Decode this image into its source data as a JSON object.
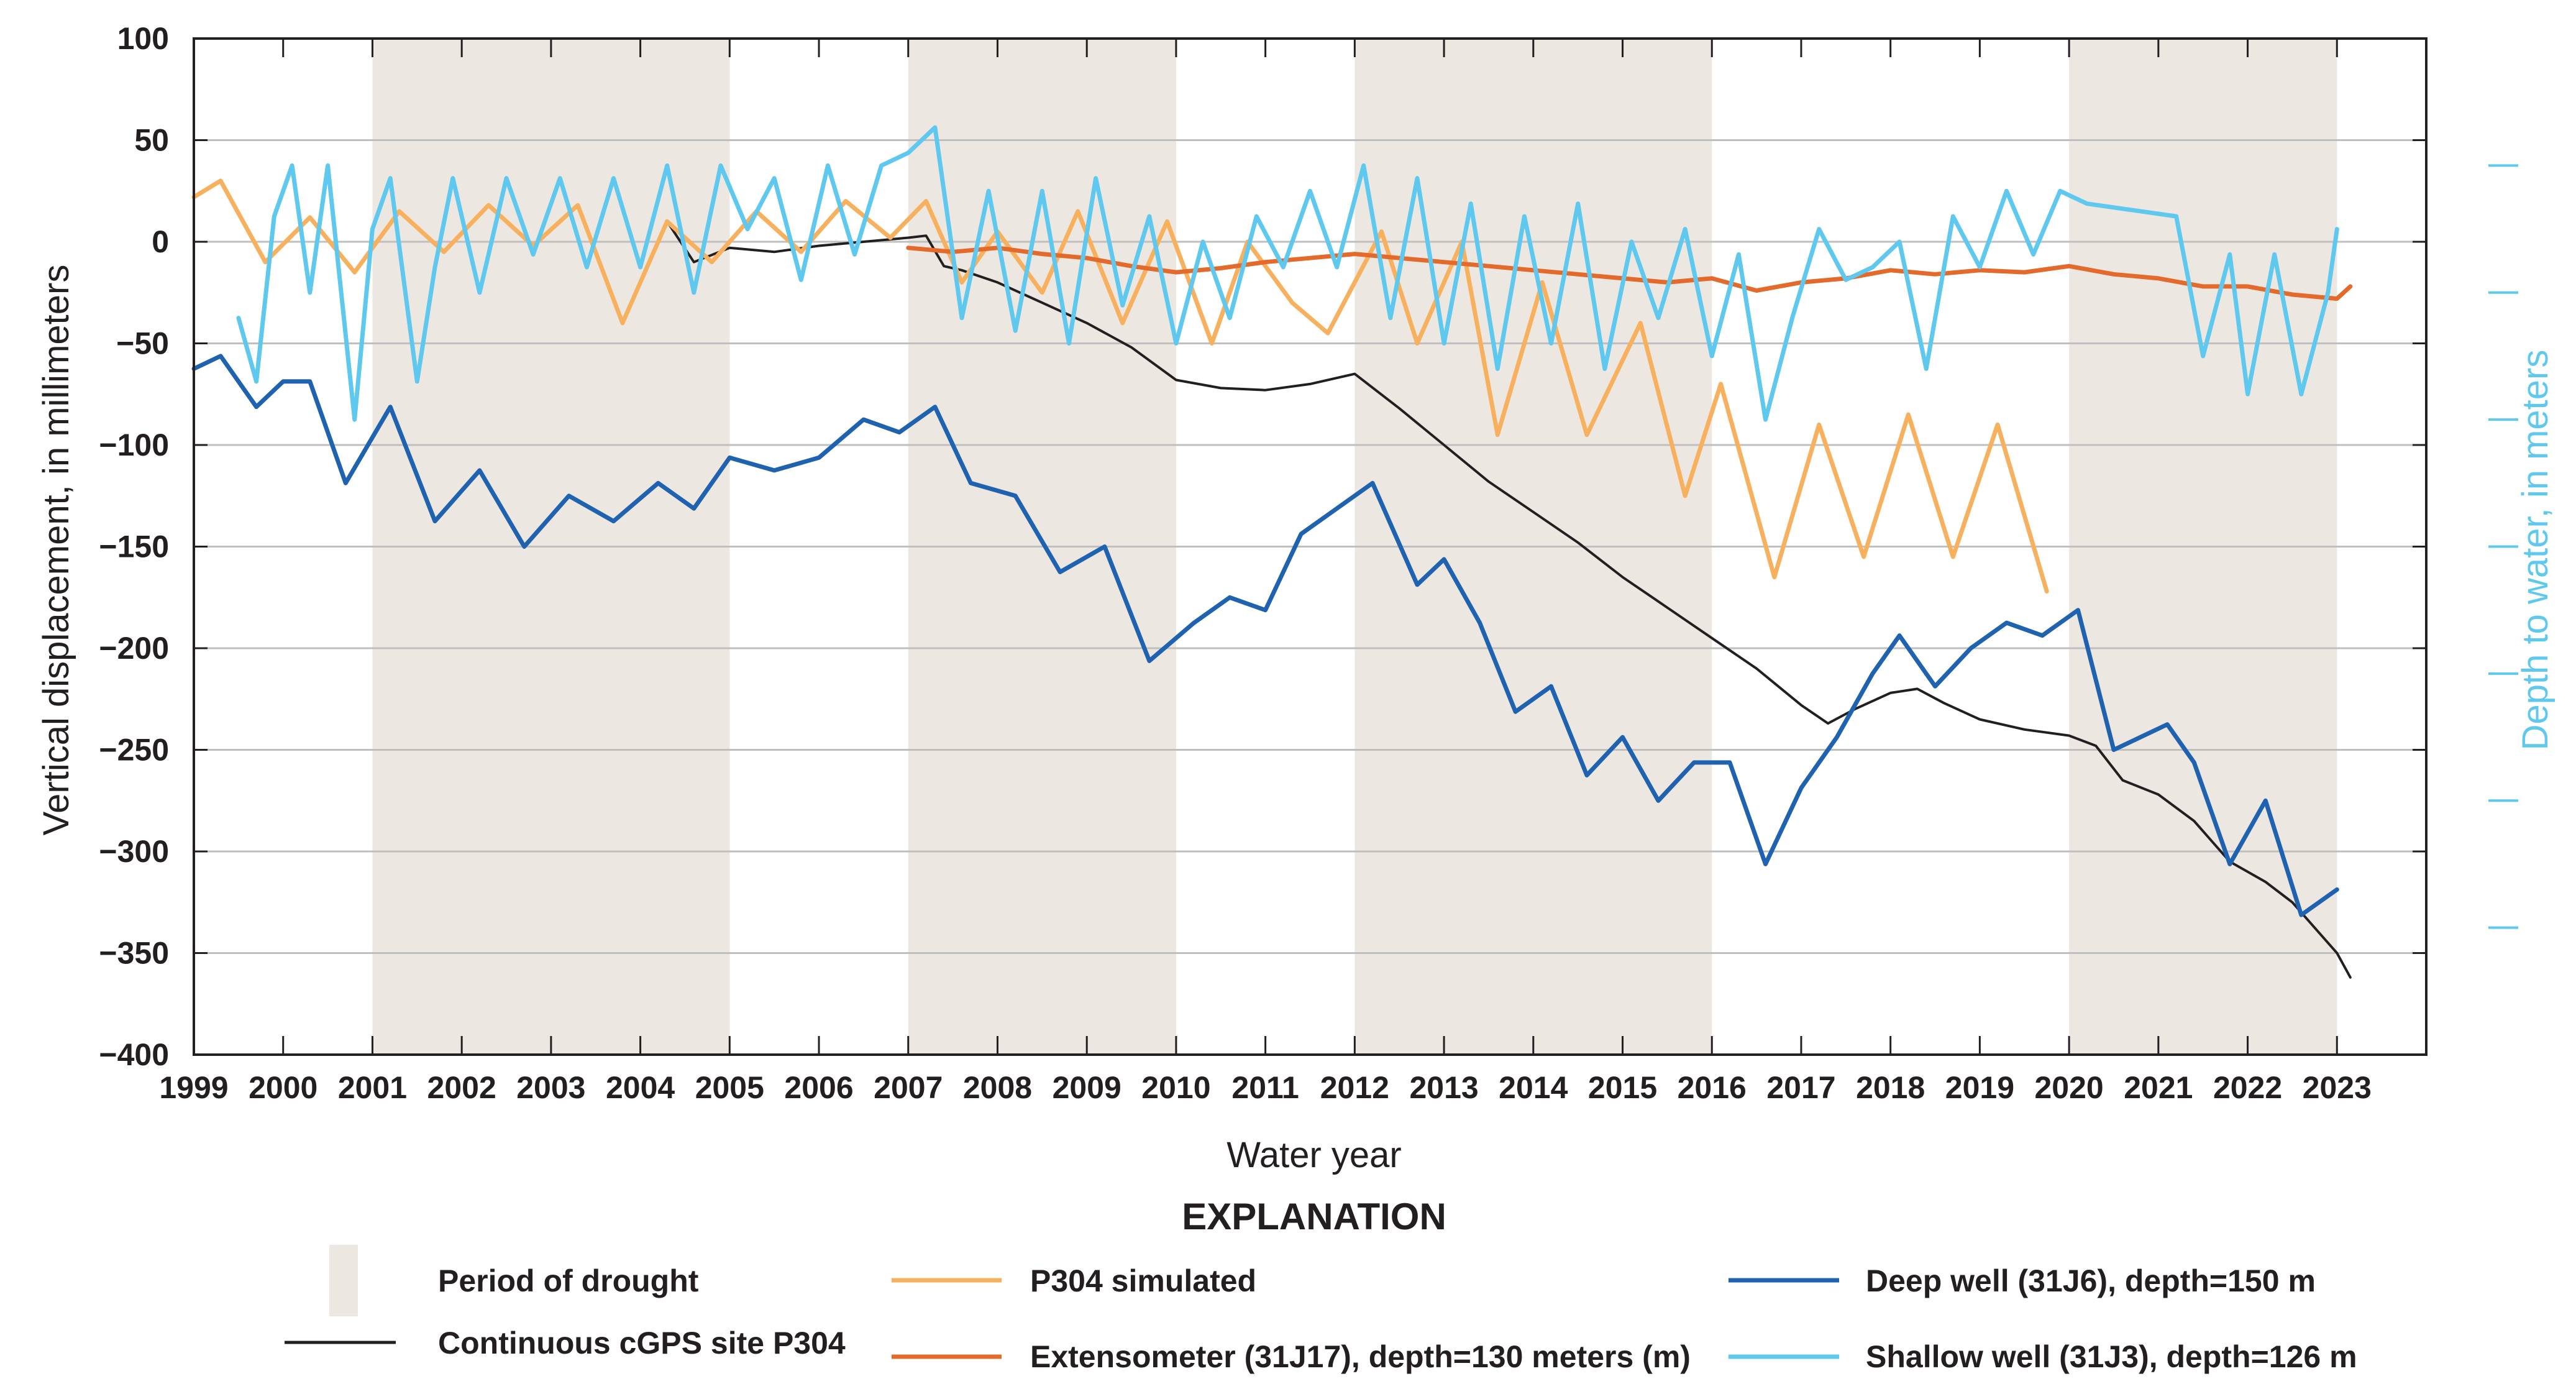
{
  "chart_data": {
    "type": "line",
    "xlabel": "Water year",
    "ylabel": "Vertical displacement, in millimeters",
    "y2label": "Depth to water, in meters",
    "xlim": [
      1999,
      2024
    ],
    "ylim": [
      -400,
      100
    ],
    "y2lim": [
      80,
      0
    ],
    "x_ticks": [
      1999,
      2000,
      2001,
      2002,
      2003,
      2004,
      2005,
      2006,
      2007,
      2008,
      2009,
      2010,
      2011,
      2012,
      2013,
      2014,
      2015,
      2016,
      2017,
      2018,
      2019,
      2020,
      2021,
      2022,
      2023
    ],
    "y_ticks": [
      100,
      50,
      0,
      -50,
      -100,
      -150,
      -200,
      -250,
      -300,
      -350,
      -400
    ],
    "y_tick_labels": [
      "100",
      "50",
      "0",
      "−50",
      "−100",
      "−150",
      "−200",
      "−250",
      "−300",
      "−350",
      "−400"
    ],
    "y2_ticks": [
      0,
      10,
      20,
      30,
      40,
      50,
      60,
      70,
      80
    ],
    "drought_periods": [
      [
        2001,
        2005
      ],
      [
        2007,
        2010
      ],
      [
        2012,
        2016
      ],
      [
        2020,
        2023
      ]
    ],
    "series": [
      {
        "name": "Continuous cGPS site P304",
        "color": "#231f20",
        "axis": "left",
        "x": [
          2004.3,
          2004.6,
          2005.0,
          2005.5,
          2006.0,
          2006.5,
          2007.0,
          2007.2,
          2007.4,
          2007.6,
          2008.0,
          2008.5,
          2009.0,
          2009.5,
          2010.0,
          2010.5,
          2011.0,
          2011.5,
          2012.0,
          2012.5,
          2013.0,
          2013.5,
          2014.0,
          2014.5,
          2015.0,
          2015.5,
          2016.0,
          2016.5,
          2017.0,
          2017.3,
          2017.6,
          2018.0,
          2018.3,
          2018.6,
          2019.0,
          2019.5,
          2020.0,
          2020.3,
          2020.6,
          2021.0,
          2021.4,
          2021.8,
          2022.2,
          2022.5,
          2022.8,
          2023.0,
          2023.15
        ],
        "y": [
          10,
          -10,
          -3,
          -5,
          -2,
          0,
          2,
          3,
          -12,
          -14,
          -20,
          -30,
          -40,
          -52,
          -68,
          -72,
          -73,
          -70,
          -65,
          -82,
          -100,
          -118,
          -133,
          -148,
          -165,
          -180,
          -195,
          -210,
          -228,
          -237,
          -230,
          -222,
          -220,
          -227,
          -235,
          -240,
          -243,
          -248,
          -265,
          -272,
          -285,
          -305,
          -315,
          -325,
          -340,
          -350,
          -362
        ]
      },
      {
        "name": "P304 simulated",
        "color": "#f7b15e",
        "axis": "left",
        "x": [
          1999.0,
          1999.3,
          1999.8,
          2000.3,
          2000.8,
          2001.3,
          2001.8,
          2002.3,
          2002.8,
          2003.3,
          2003.8,
          2004.3,
          2004.8,
          2005.3,
          2005.8,
          2006.3,
          2006.8,
          2007.2,
          2007.6,
          2008.0,
          2008.5,
          2008.9,
          2009.4,
          2009.9,
          2010.4,
          2010.8,
          2011.3,
          2011.7,
          2012.3,
          2012.7,
          2013.2,
          2013.6,
          2014.1,
          2014.6,
          2015.2,
          2015.7,
          2016.1,
          2016.7,
          2017.2,
          2017.7,
          2018.2,
          2018.7,
          2019.2,
          2019.75
        ],
        "y": [
          22,
          30,
          -10,
          12,
          -15,
          15,
          -5,
          18,
          -2,
          18,
          -40,
          10,
          -10,
          15,
          -5,
          20,
          2,
          20,
          -20,
          5,
          -25,
          15,
          -40,
          10,
          -50,
          0,
          -30,
          -45,
          5,
          -50,
          0,
          -95,
          -20,
          -95,
          -40,
          -125,
          -70,
          -165,
          -90,
          -155,
          -85,
          -155,
          -90,
          -172
        ]
      },
      {
        "name": "Extensometer (31J17), depth=130 meters (m)",
        "color": "#e36a2a",
        "axis": "left",
        "x": [
          2007.0,
          2007.5,
          2008.0,
          2008.5,
          2009.0,
          2009.5,
          2010.0,
          2010.5,
          2011.0,
          2011.5,
          2012.0,
          2012.5,
          2013.0,
          2013.5,
          2014.0,
          2014.5,
          2015.0,
          2015.5,
          2016.0,
          2016.5,
          2017.0,
          2017.5,
          2018.0,
          2018.5,
          2019.0,
          2019.5,
          2020.0,
          2020.5,
          2021.0,
          2021.5,
          2022.0,
          2022.5,
          2023.0,
          2023.15
        ],
        "y": [
          -3,
          -5,
          -3,
          -6,
          -8,
          -12,
          -15,
          -13,
          -10,
          -8,
          -6,
          -8,
          -10,
          -12,
          -14,
          -16,
          -18,
          -20,
          -18,
          -24,
          -20,
          -18,
          -14,
          -16,
          -14,
          -15,
          -12,
          -16,
          -18,
          -22,
          -22,
          -26,
          -28,
          -22
        ]
      },
      {
        "name": "Deep well (31J6), depth=150 m",
        "color": "#1f62b0",
        "axis": "right",
        "x": [
          1999.0,
          1999.3,
          1999.7,
          2000.0,
          2000.3,
          2000.7,
          2001.2,
          2001.7,
          2002.2,
          2002.7,
          2003.2,
          2003.7,
          2004.2,
          2004.6,
          2005.0,
          2005.5,
          2006.0,
          2006.5,
          2006.9,
          2007.3,
          2007.7,
          2008.2,
          2008.7,
          2009.2,
          2009.7,
          2010.2,
          2010.6,
          2011.0,
          2011.4,
          2011.8,
          2012.2,
          2012.7,
          2013.0,
          2013.4,
          2013.8,
          2014.2,
          2014.6,
          2015.0,
          2015.4,
          2015.8,
          2016.2,
          2016.6,
          2017.0,
          2017.4,
          2017.8,
          2018.1,
          2018.5,
          2018.9,
          2019.3,
          2019.7,
          2020.1,
          2020.5,
          2020.8,
          2021.1,
          2021.4,
          2021.8,
          2022.2,
          2022.6,
          2023.0
        ],
        "y": [
          26,
          25,
          29,
          27,
          27,
          35,
          29,
          38,
          34,
          40,
          36,
          38,
          35,
          37,
          33,
          34,
          33,
          30,
          31,
          29,
          35,
          36,
          42,
          40,
          49,
          46,
          44,
          45,
          39,
          37,
          35,
          43,
          41,
          46,
          53,
          51,
          58,
          55,
          60,
          57,
          57,
          65,
          59,
          55,
          50,
          47,
          51,
          48,
          46,
          47,
          45,
          56,
          55,
          54,
          57,
          65,
          60,
          69,
          67
        ]
      },
      {
        "name": "Shallow well (31J3), depth=126 m",
        "color": "#5ec8ef",
        "axis": "right",
        "x": [
          1999.5,
          1999.7,
          1999.9,
          2000.1,
          2000.3,
          2000.5,
          2000.8,
          2001.0,
          2001.2,
          2001.5,
          2001.7,
          2001.9,
          2002.2,
          2002.5,
          2002.8,
          2003.1,
          2003.4,
          2003.7,
          2004.0,
          2004.3,
          2004.6,
          2004.9,
          2005.2,
          2005.5,
          2005.8,
          2006.1,
          2006.4,
          2006.7,
          2007.0,
          2007.3,
          2007.6,
          2007.9,
          2008.2,
          2008.5,
          2008.8,
          2009.1,
          2009.4,
          2009.7,
          2010.0,
          2010.3,
          2010.6,
          2010.9,
          2011.2,
          2011.5,
          2011.8,
          2012.1,
          2012.4,
          2012.7,
          2013.0,
          2013.3,
          2013.6,
          2013.9,
          2014.2,
          2014.5,
          2014.8,
          2015.1,
          2015.4,
          2015.7,
          2016.0,
          2016.3,
          2016.6,
          2016.9,
          2017.2,
          2017.5,
          2017.8,
          2018.1,
          2018.4,
          2018.7,
          2019.0,
          2019.3,
          2019.6,
          2019.9,
          2020.2,
          2021.2,
          2021.5,
          2021.8,
          2022.0,
          2022.3,
          2022.6,
          2022.9,
          2023.0
        ],
        "y": [
          22,
          27,
          14,
          10,
          20,
          10,
          30,
          15,
          11,
          27,
          18,
          11,
          20,
          11,
          17,
          11,
          18,
          11,
          18,
          10,
          20,
          10,
          15,
          11,
          19,
          10,
          17,
          10,
          9,
          7,
          22,
          12,
          23,
          12,
          24,
          11,
          21,
          14,
          24,
          16,
          22,
          14,
          18,
          12,
          18,
          10,
          22,
          11,
          24,
          13,
          26,
          14,
          24,
          13,
          26,
          16,
          22,
          15,
          25,
          17,
          30,
          22,
          15,
          19,
          18,
          16,
          26,
          14,
          18,
          12,
          17,
          12,
          13,
          14,
          25,
          17,
          28,
          17,
          28,
          20,
          15
        ]
      }
    ],
    "legend": {
      "title": "EXPLANATION",
      "drought_label": "Period of drought",
      "items": [
        "Continuous cGPS site P304",
        "P304 simulated",
        "Extensometer (31J17), depth=130 meters (m)",
        "Deep well (31J6), depth=150 m",
        "Shallow well (31J3), depth=126 m"
      ]
    }
  },
  "colors": {
    "drought": "#ede7e2",
    "grid": "#bfbfbf",
    "axis": "#231f20",
    "right_axis": "#5ec8ef"
  }
}
